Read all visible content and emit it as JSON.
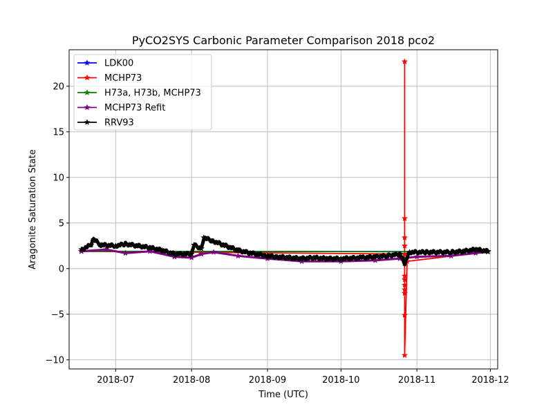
{
  "chart_data": {
    "type": "line",
    "title": "PyCO2SYS Carbonic Parameter Comparison 2018 pco2",
    "xlabel": "Time (UTC)",
    "ylabel": "Aragonite Saturation State",
    "x_type": "date",
    "xlim": [
      "2018-06-12",
      "2018-12-04"
    ],
    "ylim": [
      -11,
      24
    ],
    "x_ticks": [
      "2018-07-01",
      "2018-08-01",
      "2018-09-01",
      "2018-10-01",
      "2018-11-01",
      "2018-12-01"
    ],
    "x_tick_labels": [
      "2018-07",
      "2018-08",
      "2018-09",
      "2018-10",
      "2018-11",
      "2018-12"
    ],
    "y_ticks": [
      -10,
      -5,
      0,
      5,
      10,
      15,
      20
    ],
    "y_tick_labels": [
      "−10",
      "−5",
      "0",
      "5",
      "10",
      "15",
      "20"
    ],
    "grid": true,
    "legend_position": "top-left",
    "marker": "star",
    "series": [
      {
        "name": "LDK00",
        "color": "#0000ff",
        "points": [
          [
            "2018-06-17",
            1.9
          ],
          [
            "2018-11-30",
            1.85
          ]
        ]
      },
      {
        "name": "MCHP73",
        "color": "#ff0000",
        "points": [
          [
            "2018-06-17",
            1.9
          ],
          [
            "2018-10-27",
            1.6
          ],
          [
            "2018-10-27",
            22.7
          ],
          [
            "2018-10-27",
            5.5
          ],
          [
            "2018-10-27",
            3.4
          ],
          [
            "2018-10-27",
            2.5
          ],
          [
            "2018-10-27",
            -1.2
          ],
          [
            "2018-10-27",
            -2.7
          ],
          [
            "2018-10-27",
            -0.8
          ],
          [
            "2018-10-27",
            -1.8
          ],
          [
            "2018-10-27",
            -2.3
          ],
          [
            "2018-10-27",
            -5.1
          ],
          [
            "2018-10-27",
            -9.5
          ],
          [
            "2018-10-28",
            0.8
          ],
          [
            "2018-11-30",
            1.85
          ]
        ]
      },
      {
        "name": "H73a, H73b, MCHP73",
        "color": "#008000",
        "points": [
          [
            "2018-06-17",
            1.9
          ],
          [
            "2018-11-30",
            1.85
          ]
        ]
      },
      {
        "name": "MCHP73 Refit",
        "color": "#800080",
        "points": [
          [
            "2018-06-17",
            1.9
          ],
          [
            "2018-06-27",
            2.1
          ],
          [
            "2018-07-05",
            1.7
          ],
          [
            "2018-07-15",
            1.9
          ],
          [
            "2018-07-25",
            1.3
          ],
          [
            "2018-08-01",
            1.2
          ],
          [
            "2018-08-05",
            1.6
          ],
          [
            "2018-08-10",
            1.8
          ],
          [
            "2018-08-20",
            1.4
          ],
          [
            "2018-09-01",
            1.1
          ],
          [
            "2018-09-15",
            0.8
          ],
          [
            "2018-10-01",
            0.8
          ],
          [
            "2018-10-15",
            0.9
          ],
          [
            "2018-10-25",
            1.1
          ],
          [
            "2018-11-01",
            1.3
          ],
          [
            "2018-11-15",
            1.4
          ],
          [
            "2018-11-25",
            1.7
          ],
          [
            "2018-11-30",
            1.85
          ]
        ]
      },
      {
        "name": "RRV93",
        "color": "#000000",
        "points": [
          [
            "2018-06-17",
            2.1
          ],
          [
            "2018-06-21",
            2.6
          ],
          [
            "2018-06-22",
            3.2
          ],
          [
            "2018-06-25",
            2.6
          ],
          [
            "2018-07-01",
            2.5
          ],
          [
            "2018-07-05",
            2.7
          ],
          [
            "2018-07-10",
            2.5
          ],
          [
            "2018-07-15",
            2.3
          ],
          [
            "2018-07-20",
            2.0
          ],
          [
            "2018-07-25",
            1.6
          ],
          [
            "2018-08-01",
            1.6
          ],
          [
            "2018-08-02",
            2.6
          ],
          [
            "2018-08-05",
            2.2
          ],
          [
            "2018-08-06",
            3.4
          ],
          [
            "2018-08-10",
            3.0
          ],
          [
            "2018-08-15",
            2.5
          ],
          [
            "2018-08-20",
            2.0
          ],
          [
            "2018-08-25",
            1.7
          ],
          [
            "2018-09-01",
            1.4
          ],
          [
            "2018-09-05",
            1.3
          ],
          [
            "2018-09-10",
            1.2
          ],
          [
            "2018-09-15",
            1.1
          ],
          [
            "2018-09-20",
            1.2
          ],
          [
            "2018-09-25",
            1.1
          ],
          [
            "2018-10-01",
            1.1
          ],
          [
            "2018-10-10",
            1.2
          ],
          [
            "2018-10-20",
            1.4
          ],
          [
            "2018-10-25",
            1.6
          ],
          [
            "2018-10-27",
            0.6
          ],
          [
            "2018-10-29",
            1.8
          ],
          [
            "2018-11-05",
            1.8
          ],
          [
            "2018-11-15",
            1.8
          ],
          [
            "2018-11-20",
            1.9
          ],
          [
            "2018-11-25",
            2.1
          ],
          [
            "2018-11-30",
            1.9
          ]
        ]
      }
    ]
  }
}
